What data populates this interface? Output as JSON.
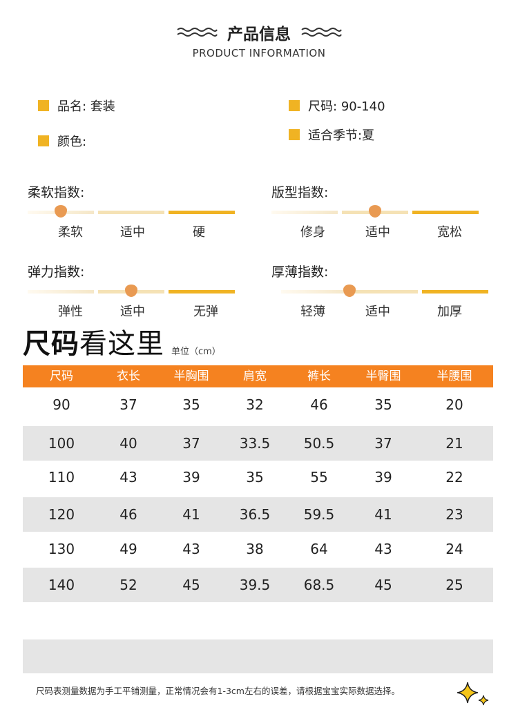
{
  "header": {
    "title_cn": "产品信息",
    "title_en": "PRODUCT INFORMATION"
  },
  "info": {
    "name_label": "品名:",
    "name_value": "套装",
    "size_label": "尺码:",
    "size_value": "90-140",
    "color_label": "颜色:",
    "season_label": "适合季节:",
    "season_value": "夏"
  },
  "indices": [
    {
      "title": "柔软指数:",
      "options": [
        "柔软",
        "适中",
        "硬"
      ],
      "selected": 0
    },
    {
      "title": "版型指数:",
      "options": [
        "修身",
        "适中",
        "宽松"
      ],
      "selected": 1
    },
    {
      "title": "弹力指数:",
      "options": [
        "弹性",
        "适中",
        "无弹"
      ],
      "selected": 1
    },
    {
      "title": "厚薄指数:",
      "options": [
        "轻薄",
        "适中",
        "加厚"
      ],
      "selected": 0.5
    }
  ],
  "size_chart": {
    "title_bold": "尺码",
    "title_light": "看这里",
    "unit": "单位（cm）",
    "headers": [
      "尺码",
      "衣长",
      "半胸围",
      "肩宽",
      "裤长",
      "半臀围",
      "半腰围"
    ],
    "rows": [
      [
        "90",
        "37",
        "35",
        "32",
        "46",
        "35",
        "20"
      ],
      [
        "100",
        "40",
        "37",
        "33.5",
        "50.5",
        "37",
        "21"
      ],
      [
        "110",
        "43",
        "39",
        "35",
        "55",
        "39",
        "22"
      ],
      [
        "120",
        "46",
        "41",
        "36.5",
        "59.5",
        "41",
        "23"
      ],
      [
        "130",
        "49",
        "43",
        "38",
        "64",
        "43",
        "24"
      ],
      [
        "140",
        "52",
        "45",
        "39.5",
        "68.5",
        "45",
        "25"
      ]
    ]
  },
  "note": "尺码表测量数据为手工平铺测量，正常情况会有1-3cm左右的误差，请根据宝宝实际数据选择。",
  "colors": {
    "accent_orange": "#f58220",
    "square_yellow": "#f0b323",
    "knob": "#e99a52",
    "row_gray": "#e5e5e5"
  }
}
